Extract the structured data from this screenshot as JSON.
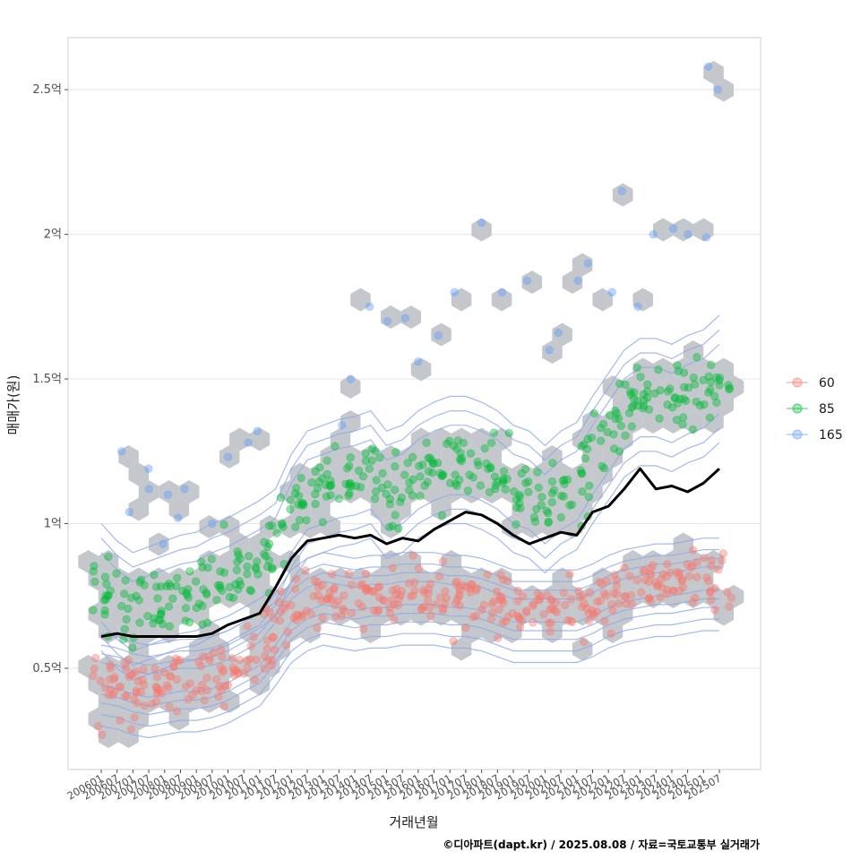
{
  "chart_data": {
    "type": "scatter",
    "xlabel": "거래년월",
    "ylabel": "매매가(원)",
    "caption": "©디아파트(dapt.kr) / 2025.08.08 / 자료=국토교통부 실거래가",
    "y_unit": "억",
    "ylim": [
      0.15,
      2.68
    ],
    "y_ticks": [
      {
        "value": 0.5,
        "label": "0.5억"
      },
      {
        "value": 1.0,
        "label": "1억"
      },
      {
        "value": 1.5,
        "label": "1.5억"
      },
      {
        "value": 2.0,
        "label": "2억"
      },
      {
        "value": 2.5,
        "label": "2.5억"
      }
    ],
    "x_ticks": [
      "200601",
      "200607",
      "200701",
      "200707",
      "200801",
      "200807",
      "200901",
      "200907",
      "201001",
      "201007",
      "201101",
      "201107",
      "201201",
      "201207",
      "201301",
      "201307",
      "201401",
      "201407",
      "201501",
      "201507",
      "201601",
      "201607",
      "201701",
      "201707",
      "201801",
      "201807",
      "201901",
      "201907",
      "202001",
      "202007",
      "202101",
      "202107",
      "202201",
      "202207",
      "202301",
      "202307",
      "202401",
      "202407",
      "202501",
      "202507"
    ],
    "grid": true,
    "legend_position": "right",
    "series": [
      {
        "name": "60",
        "color": "#F8766D"
      },
      {
        "name": "85",
        "color": "#00BA38"
      },
      {
        "name": "165",
        "color": "#619CFF"
      }
    ],
    "hex_color": "#c4c8cc",
    "contour_color": "#8fa8e8",
    "trend_line": {
      "color": "#000000",
      "points": [
        [
          "200601",
          0.61
        ],
        [
          "200607",
          0.62
        ],
        [
          "200701",
          0.61
        ],
        [
          "200707",
          0.61
        ],
        [
          "200801",
          0.61
        ],
        [
          "200807",
          0.61
        ],
        [
          "200901",
          0.61
        ],
        [
          "200907",
          0.62
        ],
        [
          "201001",
          0.65
        ],
        [
          "201007",
          0.67
        ],
        [
          "201101",
          0.69
        ],
        [
          "201107",
          0.78
        ],
        [
          "201201",
          0.88
        ],
        [
          "201207",
          0.94
        ],
        [
          "201301",
          0.95
        ],
        [
          "201307",
          0.96
        ],
        [
          "201401",
          0.95
        ],
        [
          "201407",
          0.96
        ],
        [
          "201501",
          0.93
        ],
        [
          "201507",
          0.95
        ],
        [
          "201601",
          0.94
        ],
        [
          "201607",
          0.98
        ],
        [
          "201701",
          1.01
        ],
        [
          "201707",
          1.04
        ],
        [
          "201801",
          1.03
        ],
        [
          "201807",
          1.0
        ],
        [
          "201901",
          0.96
        ],
        [
          "201907",
          0.93
        ],
        [
          "202001",
          0.95
        ],
        [
          "202007",
          0.97
        ],
        [
          "202101",
          0.96
        ],
        [
          "202107",
          1.04
        ],
        [
          "202201",
          1.06
        ],
        [
          "202207",
          1.12
        ],
        [
          "202301",
          1.19
        ],
        [
          "202307",
          1.12
        ],
        [
          "202401",
          1.13
        ],
        [
          "202407",
          1.11
        ],
        [
          "202501",
          1.14
        ],
        [
          "202507",
          1.19
        ]
      ]
    },
    "clusters_60": [
      [
        "200601",
        0.48
      ],
      [
        "200607",
        0.47
      ],
      [
        "200701",
        0.45
      ],
      [
        "200707",
        0.44
      ],
      [
        "200801",
        0.45
      ],
      [
        "200807",
        0.46
      ],
      [
        "200901",
        0.46
      ],
      [
        "200907",
        0.47
      ],
      [
        "201001",
        0.49
      ],
      [
        "201007",
        0.52
      ],
      [
        "201101",
        0.55
      ],
      [
        "201107",
        0.62
      ],
      [
        "201201",
        0.7
      ],
      [
        "201207",
        0.74
      ],
      [
        "201301",
        0.76
      ],
      [
        "201307",
        0.75
      ],
      [
        "201401",
        0.74
      ],
      [
        "201407",
        0.75
      ],
      [
        "201501",
        0.75
      ],
      [
        "201507",
        0.76
      ],
      [
        "201601",
        0.76
      ],
      [
        "201607",
        0.76
      ],
      [
        "201701",
        0.75
      ],
      [
        "201707",
        0.75
      ],
      [
        "201801",
        0.74
      ],
      [
        "201807",
        0.72
      ],
      [
        "201901",
        0.7
      ],
      [
        "201907",
        0.7
      ],
      [
        "202001",
        0.7
      ],
      [
        "202007",
        0.7
      ],
      [
        "202101",
        0.7
      ],
      [
        "202107",
        0.72
      ],
      [
        "202201",
        0.75
      ],
      [
        "202207",
        0.77
      ],
      [
        "202301",
        0.78
      ],
      [
        "202307",
        0.79
      ],
      [
        "202401",
        0.79
      ],
      [
        "202407",
        0.8
      ],
      [
        "202501",
        0.81
      ],
      [
        "202507",
        0.81
      ]
    ],
    "clusters_85": [
      [
        "200601",
        0.78
      ],
      [
        "200607",
        0.72
      ],
      [
        "200701",
        0.68
      ],
      [
        "200707",
        0.7
      ],
      [
        "200801",
        0.72
      ],
      [
        "200807",
        0.74
      ],
      [
        "200901",
        0.75
      ],
      [
        "200907",
        0.78
      ],
      [
        "201001",
        0.8
      ],
      [
        "201007",
        0.83
      ],
      [
        "201101",
        0.86
      ],
      [
        "201107",
        0.9
      ],
      [
        "201201",
        1.02
      ],
      [
        "201207",
        1.1
      ],
      [
        "201301",
        1.12
      ],
      [
        "201307",
        1.14
      ],
      [
        "201401",
        1.15
      ],
      [
        "201407",
        1.17
      ],
      [
        "201501",
        1.1
      ],
      [
        "201507",
        1.12
      ],
      [
        "201601",
        1.17
      ],
      [
        "201607",
        1.2
      ],
      [
        "201701",
        1.22
      ],
      [
        "201707",
        1.22
      ],
      [
        "201801",
        1.2
      ],
      [
        "201807",
        1.17
      ],
      [
        "201901",
        1.12
      ],
      [
        "201907",
        1.1
      ],
      [
        "202001",
        1.05
      ],
      [
        "202007",
        1.1
      ],
      [
        "202101",
        1.13
      ],
      [
        "202107",
        1.22
      ],
      [
        "202201",
        1.3
      ],
      [
        "202207",
        1.38
      ],
      [
        "202301",
        1.42
      ],
      [
        "202307",
        1.42
      ],
      [
        "202401",
        1.4
      ],
      [
        "202407",
        1.43
      ],
      [
        "202501",
        1.45
      ],
      [
        "202507",
        1.5
      ]
    ],
    "points_165": [
      [
        "200607",
        1.25
      ],
      [
        "200707",
        1.19
      ],
      [
        "200701",
        1.04
      ],
      [
        "200707",
        1.12
      ],
      [
        "200801",
        1.1
      ],
      [
        "200807",
        1.12
      ],
      [
        "200801",
        0.93
      ],
      [
        "200807",
        1.02
      ],
      [
        "200907",
        1.0
      ],
      [
        "201001",
        1.23
      ],
      [
        "201007",
        1.28
      ],
      [
        "201101",
        1.32
      ],
      [
        "201307",
        1.34
      ],
      [
        "201401",
        1.5
      ],
      [
        "201407",
        1.75
      ],
      [
        "201501",
        1.7
      ],
      [
        "201507",
        1.71
      ],
      [
        "201601",
        1.56
      ],
      [
        "201607",
        1.65
      ],
      [
        "201701",
        1.8
      ],
      [
        "201801",
        2.04
      ],
      [
        "201807",
        1.8
      ],
      [
        "201907",
        1.84
      ],
      [
        "202001",
        1.6
      ],
      [
        "202007",
        1.66
      ],
      [
        "202101",
        1.84
      ],
      [
        "202107",
        1.9
      ],
      [
        "202201",
        1.8
      ],
      [
        "202207",
        2.15
      ],
      [
        "202301",
        1.75
      ],
      [
        "202307",
        2.0
      ],
      [
        "202401",
        2.02
      ],
      [
        "202407",
        2.0
      ],
      [
        "202501",
        2.58
      ],
      [
        "202507",
        2.5
      ],
      [
        "202501",
        1.99
      ]
    ]
  }
}
